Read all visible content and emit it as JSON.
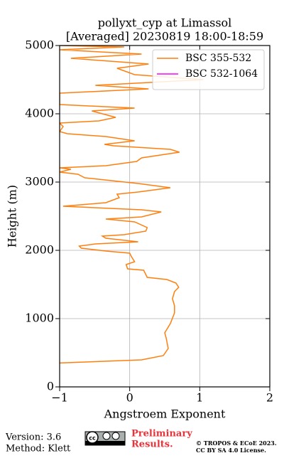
{
  "chart_data": {
    "type": "line",
    "title": "pollyxt_cyp at Limassol",
    "subtitle": "[Averaged] 20230819 18:00-18:59",
    "x_label": "Angstroem Exponent",
    "y_label": "Height (m)",
    "xlim": [
      -1,
      2
    ],
    "ylim": [
      0,
      5000
    ],
    "xticks": [
      {
        "value": -1,
        "label": "−1"
      },
      0,
      1,
      2
    ],
    "yticks": [
      0,
      1000,
      2000,
      3000,
      4000,
      5000
    ],
    "grid": true,
    "legend": "upper right",
    "series": [
      {
        "name": "BSC 355-532",
        "color": "#ff7f0e",
        "x": [
          -1,
          0.17,
          0.48,
          0.55,
          0.52,
          0.5,
          0.58,
          0.64,
          0.64,
          0.61,
          0.64,
          0.7,
          0.66,
          0.53,
          0.25,
          0.2,
          -0.03,
          -0.05,
          0.07,
          0.02,
          0,
          -0.34,
          -0.69,
          -0.72,
          -0.49,
          0.12,
          -0.34,
          -0.39,
          -0.08,
          0.23,
          0.25,
          0.07,
          -0.34,
          0.17,
          0.45,
          0.17,
          -0.95,
          -0.34,
          -0.15,
          -0.18,
          0.12,
          0.58,
          0.12,
          -0.64,
          -0.74,
          -1,
          -0.84,
          -1,
          -0.34,
          0.1,
          0.17,
          0.71,
          0.58,
          -0.23,
          -0.36,
          0.07,
          -0.34,
          -0.89,
          -1,
          -0.95,
          -1,
          -0.44,
          -0.2,
          -0.39,
          -0.54,
          0.07,
          -1,
          -1,
          0.27,
          -0.49,
          1.05,
          0.07,
          -0.18,
          0.27,
          -0.84,
          0.17,
          -1,
          -0.08,
          -1
        ],
        "y": [
          350,
          396,
          458,
          563,
          719,
          792,
          927,
          1083,
          1188,
          1292,
          1396,
          1458,
          1521,
          1573,
          1604,
          1708,
          1729,
          1792,
          1833,
          1917,
          1958,
          1990,
          2031,
          2063,
          2094,
          2125,
          2177,
          2208,
          2229,
          2281,
          2333,
          2417,
          2458,
          2490,
          2563,
          2594,
          2646,
          2698,
          2771,
          2823,
          2854,
          2917,
          2979,
          3063,
          3115,
          3146,
          3188,
          3208,
          3240,
          3302,
          3354,
          3438,
          3479,
          3531,
          3552,
          3604,
          3667,
          3708,
          3740,
          3813,
          3865,
          3896,
          3948,
          4000,
          4042,
          4083,
          4135,
          4302,
          4365,
          4417,
          4500,
          4573,
          4667,
          4729,
          4813,
          4875,
          4938,
          4979,
          5000
        ]
      },
      {
        "name": "BSC 532-1064",
        "color": "#ff00ff",
        "x": [],
        "y": []
      }
    ]
  },
  "footer": {
    "version": "Version: 3.6",
    "method": "Method: Klett",
    "notice": [
      "Preliminary",
      "Results."
    ],
    "copyright": [
      "© TROPOS & ECoE 2023.",
      "CC BY SA 4.0 License."
    ]
  }
}
